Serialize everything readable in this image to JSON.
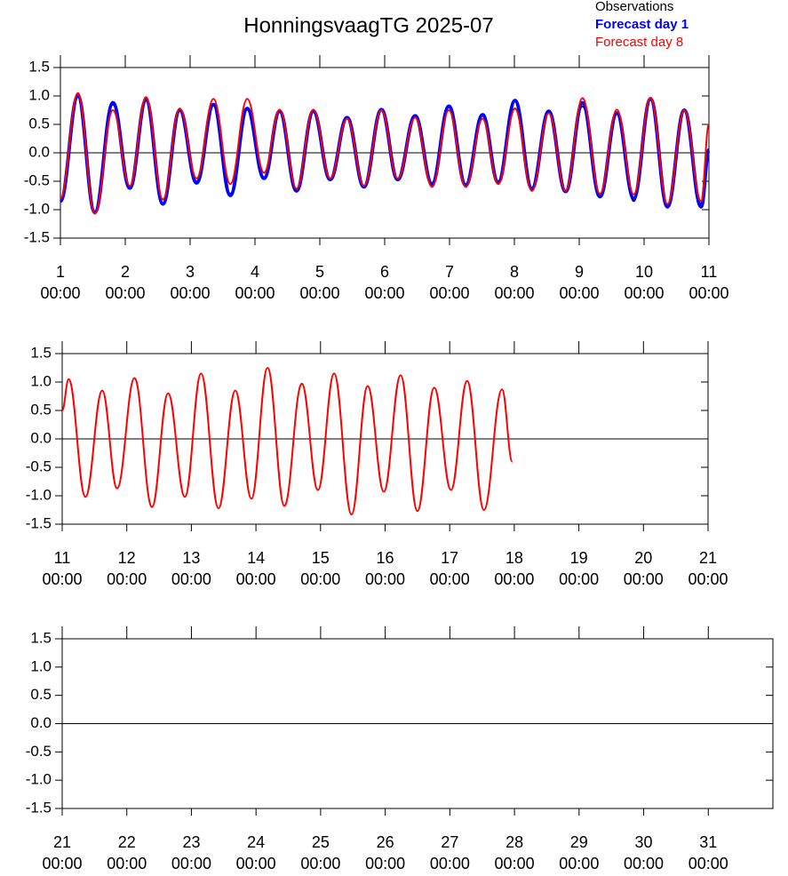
{
  "chart_data": [
    {
      "type": "line",
      "title": "HonningsvaagTG 2025-07",
      "x": [
        1.0,
        1.27,
        1.53,
        1.81,
        2.07,
        2.32,
        2.58,
        2.84,
        3.1,
        3.36,
        3.62,
        3.88,
        4.14,
        4.38,
        4.64,
        4.9,
        5.16,
        5.42,
        5.68,
        5.95,
        6.2,
        6.47,
        6.73,
        6.99,
        7.25,
        7.51,
        7.75,
        8.01,
        8.27,
        8.53,
        8.79,
        9.05,
        9.32,
        9.58,
        9.84,
        10.1,
        10.36,
        10.62,
        10.88,
        11.0
      ],
      "series": [
        {
          "name": "Observations",
          "color": "#000000",
          "values": [
            -0.82,
            1.0,
            -1.03,
            0.85,
            -0.6,
            0.92,
            -0.88,
            0.74,
            -0.5,
            0.83,
            -0.72,
            0.76,
            -0.43,
            0.72,
            -0.65,
            0.72,
            -0.46,
            0.62,
            -0.58,
            0.75,
            -0.46,
            0.64,
            -0.53,
            0.8,
            -0.55,
            0.65,
            -0.5,
            0.78,
            -0.62,
            0.72,
            -0.67,
            0.82,
            -0.76,
            0.68,
            -0.85,
            0.93,
            -0.93,
            0.74,
            -0.9,
            0.05
          ]
        },
        {
          "name": "Forecast day 1",
          "color": "#0000ff",
          "values": [
            -0.85,
            1.0,
            -1.05,
            0.88,
            -0.62,
            0.93,
            -0.9,
            0.75,
            -0.53,
            0.85,
            -0.75,
            0.78,
            -0.45,
            0.73,
            -0.67,
            0.73,
            -0.47,
            0.62,
            -0.6,
            0.76,
            -0.47,
            0.65,
            -0.55,
            0.82,
            -0.57,
            0.67,
            -0.52,
            0.92,
            -0.63,
            0.73,
            -0.68,
            0.88,
            -0.77,
            0.7,
            -0.8,
            0.95,
            -0.95,
            0.75,
            -0.95,
            0.05
          ]
        },
        {
          "name": "Forecast day 8",
          "color": "#ff0000",
          "values": [
            -0.8,
            1.05,
            -1.07,
            0.75,
            -0.58,
            0.98,
            -0.82,
            0.78,
            -0.45,
            0.95,
            -0.55,
            0.95,
            -0.35,
            0.76,
            -0.63,
            0.76,
            -0.45,
            0.6,
            -0.58,
            0.75,
            -0.45,
            0.62,
            -0.6,
            0.75,
            -0.6,
            0.6,
            -0.55,
            0.78,
            -0.67,
            0.7,
            -0.67,
            0.96,
            -0.72,
            0.76,
            -0.73,
            0.97,
            -0.9,
            0.75,
            -0.85,
            0.5
          ]
        }
      ],
      "xlim": [
        1,
        11
      ],
      "xticks": [
        {
          "value": 1,
          "label": "1\n00:00"
        },
        {
          "value": 2,
          "label": "2\n00:00"
        },
        {
          "value": 3,
          "label": "3\n00:00"
        },
        {
          "value": 4,
          "label": "4\n00:00"
        },
        {
          "value": 5,
          "label": "5\n00:00"
        },
        {
          "value": 6,
          "label": "6\n00:00"
        },
        {
          "value": 7,
          "label": "7\n00:00"
        },
        {
          "value": 8,
          "label": "8\n00:00"
        },
        {
          "value": 9,
          "label": "9\n00:00"
        },
        {
          "value": 10,
          "label": "10\n00:00"
        },
        {
          "value": 11,
          "label": "11\n00:00"
        }
      ],
      "ylim": [
        -1.5,
        1.5
      ],
      "yticks": [
        -1.5,
        {
          "value": -1,
          "label": "-1.0"
        },
        -0.5,
        {
          "value": 0,
          "label": "0.0"
        },
        0.5,
        {
          "value": 1,
          "label": "1.0"
        },
        1.5
      ]
    },
    {
      "type": "line",
      "x": [
        11.0,
        11.1,
        11.36,
        11.62,
        11.85,
        12.12,
        12.39,
        12.64,
        12.9,
        13.15,
        13.42,
        13.68,
        13.93,
        14.18,
        14.44,
        14.71,
        14.96,
        15.21,
        15.48,
        15.73,
        15.98,
        16.24,
        16.5,
        16.76,
        17.02,
        17.27,
        17.53,
        17.81,
        17.97
      ],
      "series": [
        {
          "color": "#ff0000",
          "values": [
            0.5,
            1.05,
            -1.02,
            0.85,
            -0.87,
            1.07,
            -1.2,
            0.8,
            -1.02,
            1.15,
            -1.22,
            0.85,
            -1.05,
            1.25,
            -1.18,
            0.97,
            -0.9,
            1.15,
            -1.33,
            0.93,
            -0.93,
            1.12,
            -1.27,
            0.9,
            -0.9,
            1.02,
            -1.25,
            0.87,
            -0.4
          ]
        }
      ],
      "xlim": [
        11,
        21
      ],
      "xticks": [
        {
          "value": 11,
          "label": "11\n00:00"
        },
        {
          "value": 12,
          "label": "12\n00:00"
        },
        {
          "value": 13,
          "label": "13\n00:00"
        },
        {
          "value": 14,
          "label": "14\n00:00"
        },
        {
          "value": 15,
          "label": "15\n00:00"
        },
        {
          "value": 16,
          "label": "16\n00:00"
        },
        {
          "value": 17,
          "label": "17\n00:00"
        },
        {
          "value": 18,
          "label": "18\n00:00"
        },
        {
          "value": 19,
          "label": "19\n00:00"
        },
        {
          "value": 20,
          "label": "20\n00:00"
        },
        {
          "value": 21,
          "label": "21\n00:00"
        }
      ],
      "ylim": [
        -1.5,
        1.5
      ],
      "yticks": [
        -1.5,
        {
          "value": -1,
          "label": "-1.0"
        },
        -0.5,
        {
          "value": 0,
          "label": "0.0"
        },
        0.5,
        {
          "value": 1,
          "label": "1.0"
        },
        1.5
      ]
    },
    {
      "type": "line",
      "series": [],
      "xlim": [
        21,
        32
      ],
      "xticks": [
        {
          "value": 21,
          "label": "21\n00:00"
        },
        {
          "value": 22,
          "label": "22\n00:00"
        },
        {
          "value": 23,
          "label": "23\n00:00"
        },
        {
          "value": 24,
          "label": "24\n00:00"
        },
        {
          "value": 25,
          "label": "25\n00:00"
        },
        {
          "value": 26,
          "label": "26\n00:00"
        },
        {
          "value": 27,
          "label": "27\n00:00"
        },
        {
          "value": 28,
          "label": "28\n00:00"
        },
        {
          "value": 29,
          "label": "29\n00:00"
        },
        {
          "value": 30,
          "label": "30\n00:00"
        },
        {
          "value": 31,
          "label": "31\n00:00"
        }
      ],
      "ylim": [
        -1.5,
        1.5
      ],
      "yticks": [
        -1.5,
        {
          "value": -1,
          "label": "-1.0"
        },
        -0.5,
        {
          "value": 0,
          "label": "0.0"
        },
        0.5,
        {
          "value": 1,
          "label": "1.0"
        },
        1.5
      ]
    }
  ]
}
